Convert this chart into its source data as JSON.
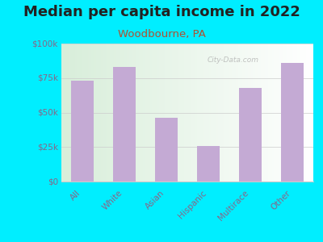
{
  "title": "Median per capita income in 2022",
  "subtitle": "Woodbourne, PA",
  "categories": [
    "All",
    "White",
    "Asian",
    "Hispanic",
    "Multirace",
    "Other"
  ],
  "values": [
    73000,
    83000,
    46000,
    26000,
    68000,
    86000
  ],
  "bar_color": "#c4aad4",
  "background_outer": "#00eeff",
  "title_fontsize": 13,
  "subtitle_fontsize": 9.5,
  "subtitle_color": "#b05030",
  "title_color": "#222222",
  "tick_color": "#886688",
  "ytick_label_color": "#886688",
  "ylim": [
    0,
    100000
  ],
  "yticks": [
    0,
    25000,
    50000,
    75000,
    100000
  ],
  "ytick_labels": [
    "$0",
    "$25k",
    "$50k",
    "$75k",
    "$100k"
  ],
  "watermark": "City-Data.com",
  "grid_color": "#cccccc",
  "spine_color": "#cccccc"
}
